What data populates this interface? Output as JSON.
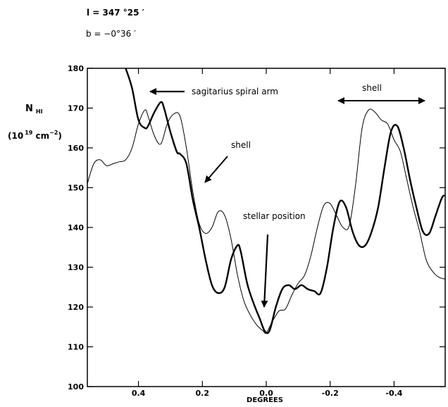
{
  "header": {
    "l_line": "l = 347 °25  ′",
    "b_line": "b = −0°36 ′"
  },
  "chart_data": {
    "type": "line",
    "xlabel": "DEGREES",
    "ylabel": "N",
    "ylabel_sub": "HI",
    "yunit": "(10",
    "yunit_exp": "19",
    "yunit_mid": " cm",
    "yunit_exp2": "−2",
    "yunit_end": ")",
    "xlim": [
      0.56,
      -0.56
    ],
    "ylim": [
      100,
      180
    ],
    "x_ticks": [
      0.4,
      0.2,
      0.0,
      -0.2,
      -0.4
    ],
    "x_tick_labels": [
      "0.4",
      "0.2",
      "0.0",
      "-0.2",
      "-0.4"
    ],
    "y_ticks": [
      100,
      110,
      120,
      130,
      140,
      150,
      160,
      170,
      180
    ],
    "y_tick_labels": [
      "100",
      "110",
      "120",
      "130",
      "140",
      "150",
      "160",
      "170",
      "180"
    ],
    "series": [
      {
        "style": "thin",
        "x": [
          0.56,
          0.54,
          0.52,
          0.5,
          0.48,
          0.46,
          0.44,
          0.42,
          0.4,
          0.38,
          0.37,
          0.35,
          0.33,
          0.31,
          0.29,
          0.27,
          0.25,
          0.23,
          0.21,
          0.19,
          0.17,
          0.15,
          0.13,
          0.11,
          0.09,
          0.07,
          0.05,
          0.03,
          0.01,
          0.0,
          -0.02,
          -0.04,
          -0.06,
          -0.08,
          -0.1,
          -0.12,
          -0.14,
          -0.16,
          -0.18,
          -0.2,
          -0.22,
          -0.24,
          -0.26,
          -0.28,
          -0.3,
          -0.32,
          -0.34,
          -0.36,
          -0.38,
          -0.4,
          -0.42,
          -0.44,
          -0.46,
          -0.48,
          -0.5,
          -0.52,
          -0.54,
          -0.56
        ],
        "y": [
          151,
          156,
          157,
          155.5,
          156,
          156.5,
          157,
          160,
          166,
          169.5,
          168,
          163,
          161,
          166,
          168.5,
          168,
          160,
          149,
          141,
          138.5,
          140,
          144,
          143,
          137,
          128,
          121.5,
          118,
          115.5,
          114,
          113.5,
          116.5,
          119,
          119.5,
          123,
          126,
          128,
          133,
          140,
          145.5,
          146,
          143,
          140,
          140.5,
          151,
          165,
          169.5,
          169,
          167,
          166,
          162,
          159,
          152,
          145,
          139,
          132,
          129,
          127.5,
          127
        ]
      },
      {
        "style": "thick",
        "x": [
          0.44,
          0.42,
          0.4,
          0.38,
          0.37,
          0.35,
          0.33,
          0.32,
          0.3,
          0.28,
          0.27,
          0.25,
          0.23,
          0.21,
          0.19,
          0.17,
          0.15,
          0.13,
          0.11,
          0.09,
          0.08,
          0.06,
          0.04,
          0.02,
          0.005,
          -0.01,
          -0.03,
          -0.05,
          -0.07,
          -0.09,
          -0.11,
          -0.13,
          -0.15,
          -0.17,
          -0.19,
          -0.21,
          -0.23,
          -0.25,
          -0.27,
          -0.29,
          -0.31,
          -0.33,
          -0.35,
          -0.37,
          -0.39,
          -0.41,
          -0.43,
          -0.45,
          -0.47,
          -0.49,
          -0.51,
          -0.53,
          -0.55,
          -0.56
        ],
        "y": [
          180,
          175,
          167,
          165,
          165.5,
          169,
          171.5,
          170,
          164,
          159,
          158.5,
          156,
          147,
          140,
          132,
          125.5,
          123.5,
          125,
          132,
          135.5,
          134,
          126,
          121,
          117,
          114,
          114,
          120,
          124.5,
          125.5,
          124.5,
          125.5,
          124.5,
          124,
          123.5,
          130,
          140,
          146.5,
          145,
          139,
          135.5,
          135.5,
          139,
          145,
          155,
          164,
          165.5,
          160,
          152,
          145,
          139,
          138.5,
          143,
          147.5,
          148
        ]
      }
    ],
    "annotations": [
      {
        "text": "sagitarius spiral arm"
      },
      {
        "text": "shell"
      },
      {
        "text": "stellar position"
      },
      {
        "text": "shell"
      }
    ]
  }
}
